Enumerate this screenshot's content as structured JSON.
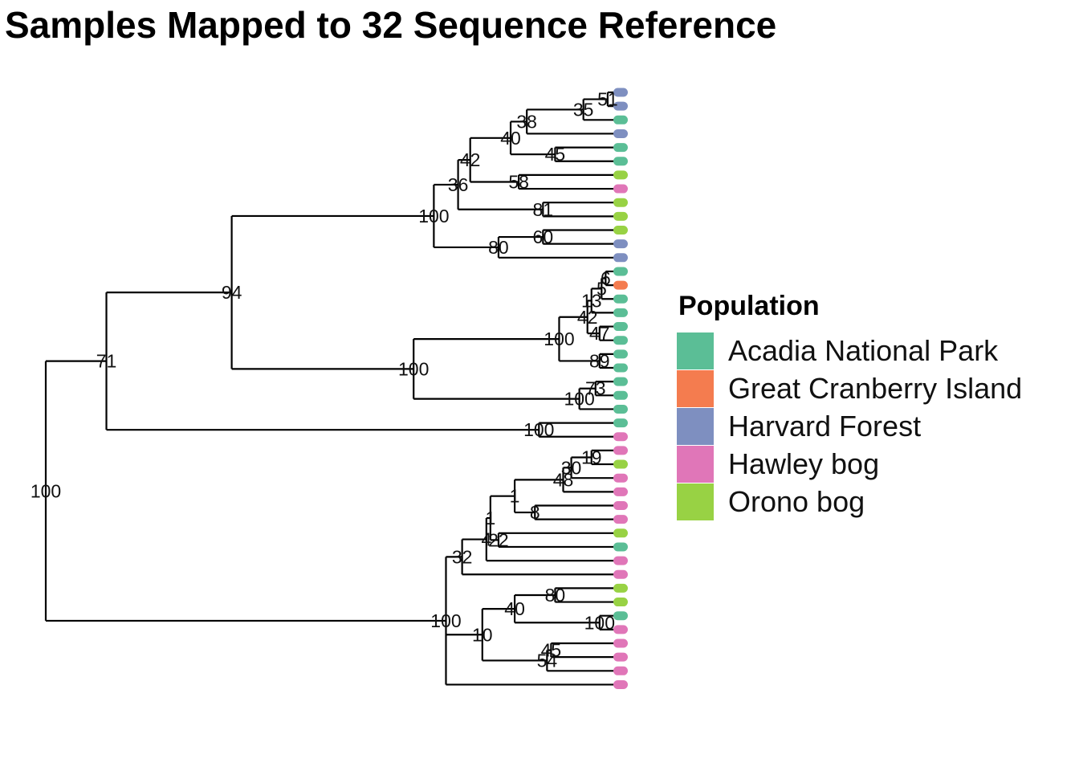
{
  "chart_data": {
    "type": "dendrogram",
    "title": "Samples Mapped to 32 Sequence Reference",
    "legend": {
      "title": "Population",
      "placement": "right",
      "entries": [
        {
          "name": "Acadia National Park",
          "color": "#5BBE96"
        },
        {
          "name": "Great Cranberry Island",
          "color": "#F47C4F"
        },
        {
          "name": "Harvard Forest",
          "color": "#7E8FC0"
        },
        {
          "name": "Hawley bog",
          "color": "#E076B8"
        },
        {
          "name": "Orono bog",
          "color": "#98D244"
        }
      ]
    },
    "tips": [
      "Harvard Forest",
      "Harvard Forest",
      "Acadia National Park",
      "Harvard Forest",
      "Acadia National Park",
      "Acadia National Park",
      "Orono bog",
      "Hawley bog",
      "Orono bog",
      "Orono bog",
      "Orono bog",
      "Harvard Forest",
      "Harvard Forest",
      "Acadia National Park",
      "Great Cranberry Island",
      "Acadia National Park",
      "Acadia National Park",
      "Acadia National Park",
      "Acadia National Park",
      "Acadia National Park",
      "Acadia National Park",
      "Acadia National Park",
      "Acadia National Park",
      "Acadia National Park",
      "Acadia National Park",
      "Hawley bog",
      "Hawley bog",
      "Orono bog",
      "Hawley bog",
      "Hawley bog",
      "Hawley bog",
      "Hawley bog",
      "Orono bog",
      "Acadia National Park",
      "Hawley bog",
      "Hawley bog",
      "Orono bog",
      "Orono bog",
      "Acadia National Park",
      "Hawley bog",
      "Hawley bog",
      "Hawley bog",
      "Hawley bog",
      "Hawley bog",
      "Hawley bog",
      "Hawley bog",
      "Acadia National Park"
    ],
    "tree": {
      "h": 0,
      "s": "100",
      "c": [
        {
          "h": 0.15,
          "s": "71",
          "c": [
            {
              "h": 0.46,
              "s": "94",
              "c": [
                {
                  "h": 0.96,
                  "s": "100",
                  "c": [
                    {
                      "h": 1.02,
                      "s": "36",
                      "c": [
                        {
                          "h": 1.05,
                          "s": "42",
                          "c": [
                            {
                              "h": 1.15,
                              "s": "40",
                              "c": [
                                {
                                  "h": 1.19,
                                  "s": "38",
                                  "c": [
                                    {
                                      "h": 1.33,
                                      "s": "35",
                                      "c": [
                                        {
                                          "h": 1.39,
                                          "s": "51",
                                          "c": [
                                            {
                                              "t": 0
                                            },
                                            {
                                              "t": 1
                                            }
                                          ]
                                        },
                                        {
                                          "t": 2
                                        }
                                      ]
                                    },
                                    {
                                      "t": 3
                                    }
                                  ]
                                },
                                {
                                  "h": 1.26,
                                  "s": "45",
                                  "c": [
                                    {
                                      "t": 4
                                    },
                                    {
                                      "t": 5
                                    }
                                  ]
                                }
                              ]
                            },
                            {
                              "h": 1.17,
                              "s": "58",
                              "c": [
                                {
                                  "t": 6
                                },
                                {
                                  "t": 7
                                }
                              ]
                            }
                          ]
                        },
                        {
                          "h": 1.23,
                          "s": "81",
                          "c": [
                            {
                              "t": 8
                            },
                            {
                              "t": 9
                            }
                          ]
                        }
                      ]
                    },
                    {
                      "h": 1.12,
                      "s": "80",
                      "c": [
                        {
                          "h": 1.23,
                          "s": "60",
                          "c": [
                            {
                              "t": 10
                            },
                            {
                              "t": 11
                            }
                          ]
                        },
                        {
                          "t": 12
                        }
                      ]
                    }
                  ]
                },
                {
                  "h": 0.91,
                  "s": "100",
                  "c": [
                    {
                      "h": 1.27,
                      "s": "100",
                      "c": [
                        {
                          "h": 1.34,
                          "s": "42",
                          "c": [
                            {
                              "h": 1.35,
                              "s": "13",
                              "c": [
                                {
                                  "h": 1.375,
                                  "s": "5",
                                  "c": [
                                    {
                                      "h": 1.385,
                                      "s": "6",
                                      "c": [
                                        {
                                          "t": 13
                                        },
                                        {
                                          "t": 14
                                        }
                                      ]
                                    },
                                    {
                                      "t": 15
                                    }
                                  ]
                                },
                                {
                                  "t": 16
                                }
                              ]
                            },
                            {
                              "h": 1.37,
                              "s": "47",
                              "c": [
                                {
                                  "t": 17
                                },
                                {
                                  "t": 18
                                }
                              ]
                            }
                          ]
                        },
                        {
                          "h": 1.37,
                          "s": "89",
                          "c": [
                            {
                              "t": 19
                            },
                            {
                              "t": 20
                            }
                          ]
                        }
                      ]
                    },
                    {
                      "h": 1.32,
                      "s": "100",
                      "c": [
                        {
                          "h": 1.36,
                          "s": "73",
                          "c": [
                            {
                              "t": 21
                            },
                            {
                              "t": 22
                            }
                          ]
                        },
                        {
                          "t": 23
                        }
                      ]
                    }
                  ]
                }
              ]
            },
            {
              "h": 1.22,
              "s": "100",
              "c": [
                {
                  "t": 24
                },
                {
                  "t": 25
                }
              ]
            }
          ]
        },
        {
          "h": 0.99,
          "s": "100",
          "c": [
            {
              "h": 1.03,
              "s": "32",
              "c": [
                {
                  "h": 1.09,
                  "s": "4",
                  "c": [
                    {
                      "h": 1.1,
                      "s": "1",
                      "c": [
                        {
                          "h": 1.16,
                          "s": "1",
                          "c": [
                            {
                              "h": 1.28,
                              "s": "48",
                              "c": [
                                {
                                  "h": 1.3,
                                  "s": "30",
                                  "c": [
                                    {
                                      "h": 1.35,
                                      "s": "19",
                                      "c": [
                                        {
                                          "t": 26
                                        },
                                        {
                                          "t": 27
                                        }
                                      ]
                                    },
                                    {
                                      "t": 28
                                    }
                                  ]
                                },
                                {
                                  "t": 29
                                }
                              ]
                            },
                            {
                              "h": 1.21,
                              "s": "8",
                              "c": [
                                {
                                  "t": 30
                                },
                                {
                                  "t": 31
                                }
                              ]
                            }
                          ]
                        },
                        {
                          "h": 1.12,
                          "s": "22",
                          "c": [
                            {
                              "t": 32
                            },
                            {
                              "t": 33
                            }
                          ]
                        }
                      ]
                    },
                    {
                      "t": 34
                    }
                  ]
                },
                {
                  "t": 35
                }
              ]
            },
            {
              "h": 1.08,
              "s": "10",
              "c": [
                {
                  "h": 1.16,
                  "s": "40",
                  "c": [
                    {
                      "h": 1.26,
                      "s": "80",
                      "c": [
                        {
                          "t": 36
                        },
                        {
                          "t": 37
                        }
                      ]
                    },
                    {
                      "h": 1.37,
                      "s": "100",
                      "c": [
                        {
                          "t": 38
                        },
                        {
                          "t": 39
                        }
                      ]
                    }
                  ]
                },
                {
                  "h": 1.24,
                  "s": "54",
                  "c": [
                    {
                      "h": 1.25,
                      "s": "45",
                      "c": [
                        {
                          "t": 40
                        },
                        {
                          "t": 41
                        }
                      ]
                    },
                    {
                      "t": 42
                    }
                  ]
                }
              ]
            },
            {
              "t": 43
            }
          ]
        }
      ]
    }
  }
}
